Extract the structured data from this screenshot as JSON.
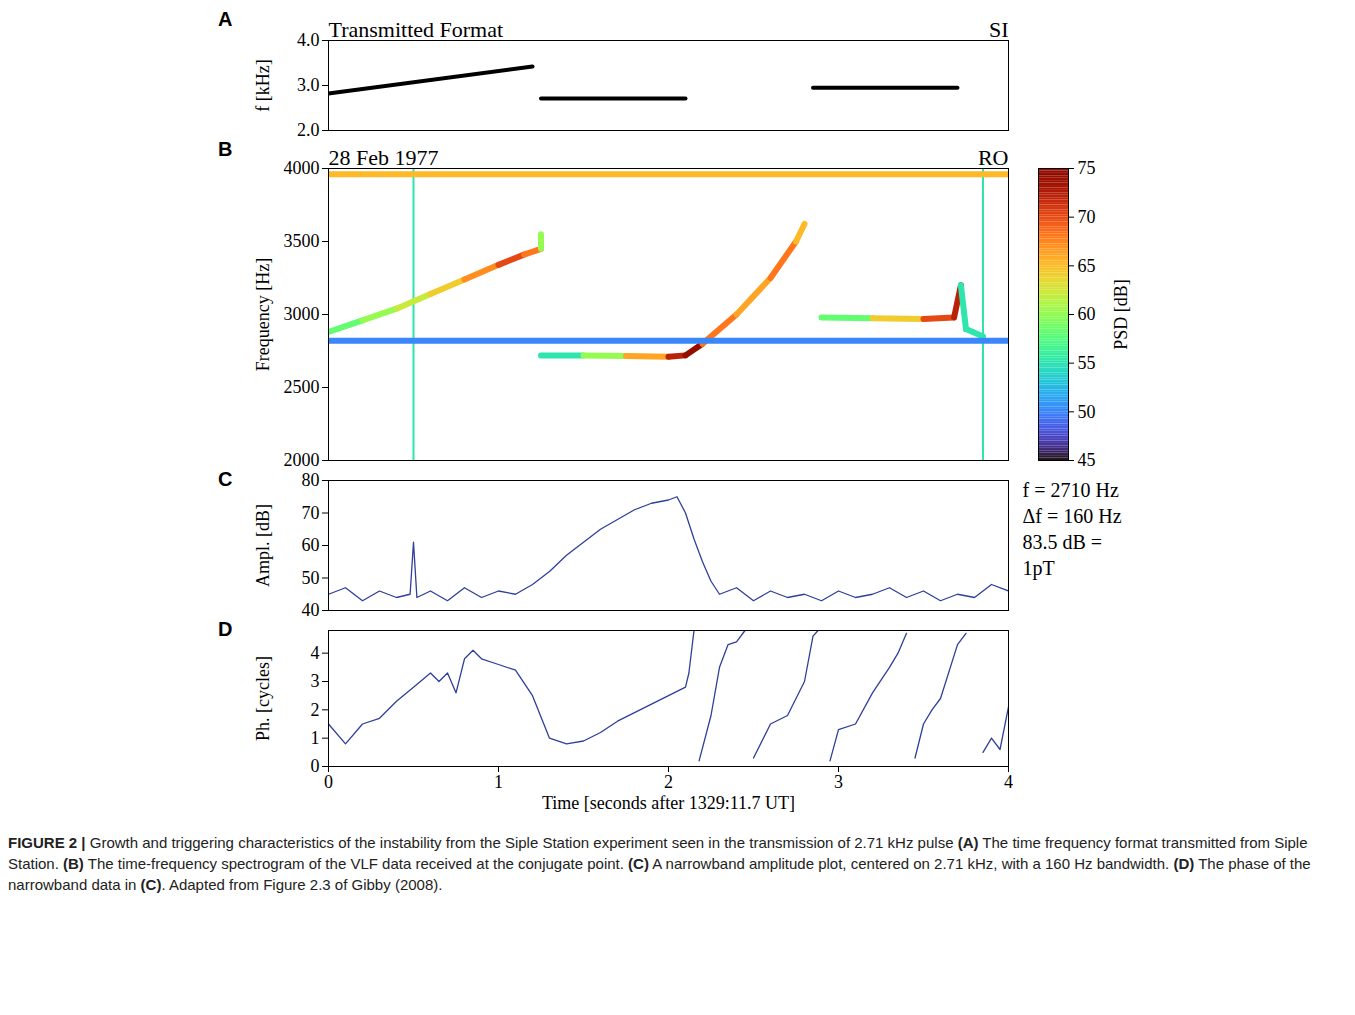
{
  "chart_data": [
    {
      "panel": "A",
      "type": "line",
      "title": "Transmitted Format",
      "annotation": "SI",
      "ylabel": "f [kHz]",
      "xlim": [
        0,
        4
      ],
      "ylim": [
        2.0,
        4.0
      ],
      "yticks": [
        {
          "value": 2,
          "label": "2.0"
        },
        {
          "value": 3,
          "label": "3.0"
        },
        {
          "value": 4,
          "label": "4.0"
        }
      ],
      "tick_labels": "y",
      "color": "#000000",
      "segments": [
        {
          "x": [
            0,
            1.2
          ],
          "values": [
            2.82,
            3.42
          ]
        },
        {
          "x": [
            1.25,
            2.1
          ],
          "values": [
            2.71,
            2.71
          ]
        },
        {
          "x": [
            2.85,
            3.7
          ],
          "values": [
            2.95,
            2.95
          ]
        }
      ]
    },
    {
      "panel": "B",
      "type": "spectrogram",
      "title": "28 Feb 1977",
      "annotation": "RO",
      "ylabel": "Frequency [Hz]",
      "xlim": [
        0,
        4
      ],
      "ylim": [
        2000,
        4000
      ],
      "yticks": [
        2000,
        2500,
        3000,
        3500,
        4000
      ],
      "tick_labels": "y",
      "traces": [
        {
          "x": [
            0,
            0.2,
            0.4,
            0.6,
            0.8,
            1.0,
            1.15,
            1.25,
            1.25
          ],
          "y": [
            2880,
            2960,
            3040,
            3140,
            3240,
            3340,
            3410,
            3450,
            3550
          ],
          "psd": [
            58,
            60,
            62,
            64,
            67,
            70,
            68,
            60,
            55
          ]
        },
        {
          "x": [
            1.25,
            1.5,
            1.75,
            2.0,
            2.1,
            2.2,
            2.4,
            2.6,
            2.75,
            2.8
          ],
          "y": [
            2720,
            2720,
            2715,
            2710,
            2720,
            2800,
            3000,
            3250,
            3500,
            3620
          ],
          "psd": [
            55,
            60,
            66,
            72,
            74,
            68,
            66,
            68,
            65,
            58
          ]
        },
        {
          "x": [
            2.9,
            3.2,
            3.5,
            3.68,
            3.72,
            3.75,
            3.85
          ],
          "y": [
            2980,
            2975,
            2970,
            2980,
            3200,
            2900,
            2850
          ],
          "psd": [
            58,
            64,
            70,
            72,
            55,
            55,
            55
          ]
        },
        {
          "x": [
            0,
            4
          ],
          "y": [
            3960,
            3960
          ],
          "psd": [
            65,
            65
          ]
        },
        {
          "x": [
            0,
            4
          ],
          "y": [
            2820,
            2820
          ],
          "psd": [
            50,
            50
          ]
        }
      ],
      "spikes": {
        "x": [
          0.5,
          3.85
        ],
        "psd": [
          55,
          55
        ]
      },
      "colorbar": {
        "label": "PSD [dB]",
        "range": [
          45,
          75
        ],
        "ticks": [
          45,
          50,
          55,
          60,
          65,
          70,
          75
        ]
      }
    },
    {
      "panel": "C",
      "type": "line",
      "ylabel": "Ampl. [dB]",
      "xlim": [
        0,
        4
      ],
      "ylim": [
        40,
        80
      ],
      "yticks": [
        40,
        50,
        60,
        70,
        80
      ],
      "tick_labels": "y",
      "color": "#2f3f9a",
      "annotations": [
        "f = 2710 Hz",
        "Δf = 160 Hz",
        "83.5 dB =",
        "1pT"
      ],
      "x": [
        0,
        0.1,
        0.2,
        0.3,
        0.4,
        0.48,
        0.5,
        0.52,
        0.6,
        0.7,
        0.8,
        0.9,
        1.0,
        1.1,
        1.2,
        1.3,
        1.4,
        1.5,
        1.6,
        1.7,
        1.8,
        1.9,
        2.0,
        2.05,
        2.1,
        2.15,
        2.2,
        2.25,
        2.3,
        2.4,
        2.5,
        2.6,
        2.7,
        2.8,
        2.9,
        3.0,
        3.1,
        3.2,
        3.3,
        3.4,
        3.5,
        3.6,
        3.7,
        3.8,
        3.9,
        4.0
      ],
      "values": [
        45,
        47,
        43,
        46,
        44,
        45,
        61,
        44,
        46,
        43,
        47,
        44,
        46,
        45,
        48,
        52,
        57,
        61,
        65,
        68,
        71,
        73,
        74,
        75,
        70,
        62,
        55,
        49,
        45,
        47,
        43,
        46,
        44,
        45,
        43,
        46,
        44,
        45,
        47,
        44,
        46,
        43,
        45,
        44,
        48,
        46
      ]
    },
    {
      "panel": "D",
      "type": "line",
      "ylabel": "Ph. [cycles]",
      "xlabel": "Time [seconds after 1329:11.7 UT]",
      "xlim": [
        0,
        4
      ],
      "ylim": [
        0,
        4.8
      ],
      "xticks": [
        0,
        1,
        2,
        3,
        4
      ],
      "yticks": [
        0,
        1,
        2,
        3,
        4
      ],
      "color": "#2f3f9a",
      "x": [
        0,
        0.1,
        0.2,
        0.3,
        0.4,
        0.5,
        0.6,
        0.65,
        0.7,
        0.75,
        0.8,
        0.85,
        0.9,
        1.0,
        1.1,
        1.2,
        1.3,
        1.4,
        1.5,
        1.6,
        1.7,
        1.8,
        1.9,
        2.0,
        2.1,
        2.12,
        2.15,
        2.17,
        2.18,
        2.25,
        2.3,
        2.35,
        2.4,
        2.45,
        2.47,
        2.5,
        2.6,
        2.7,
        2.8,
        2.85,
        2.88,
        2.9,
        2.95,
        3.0,
        3.1,
        3.2,
        3.3,
        3.35,
        3.4,
        3.42,
        3.45,
        3.5,
        3.55,
        3.6,
        3.7,
        3.75,
        3.78,
        3.85,
        3.9,
        3.95,
        4.0
      ],
      "values": [
        1.5,
        0.8,
        1.5,
        1.7,
        2.3,
        2.8,
        3.3,
        3.0,
        3.3,
        2.6,
        3.8,
        4.1,
        3.8,
        3.6,
        3.4,
        2.5,
        1.0,
        0.8,
        0.9,
        1.2,
        1.6,
        1.9,
        2.2,
        2.5,
        2.8,
        3.3,
        4.8,
        null,
        0.2,
        1.8,
        3.5,
        4.3,
        4.4,
        4.8,
        null,
        0.3,
        1.5,
        1.8,
        3.0,
        4.6,
        4.8,
        null,
        0.2,
        1.3,
        1.5,
        2.6,
        3.5,
        4.0,
        4.7,
        null,
        0.3,
        1.5,
        2.0,
        2.4,
        4.3,
        4.7,
        null,
        0.5,
        1.0,
        0.6,
        2.1
      ]
    }
  ],
  "caption": {
    "label": "FIGURE 2 |",
    "segments": [
      "Growth and triggering characteristics of the instability from the Siple Station experiment seen in the transmission of 2.71 kHz pulse ",
      "(A)",
      " The time frequency format transmitted from Siple Station. ",
      "(B)",
      " The time-frequency spectrogram of the VLF data received at the conjugate point. ",
      "(C)",
      " A narrowband amplitude plot, centered on 2.71 kHz, with a 160 Hz bandwidth. ",
      "(D)",
      " The phase of the narrowband data in ",
      "(C)",
      ". Adapted from Figure 2.3 of Gibby (2008)."
    ]
  }
}
